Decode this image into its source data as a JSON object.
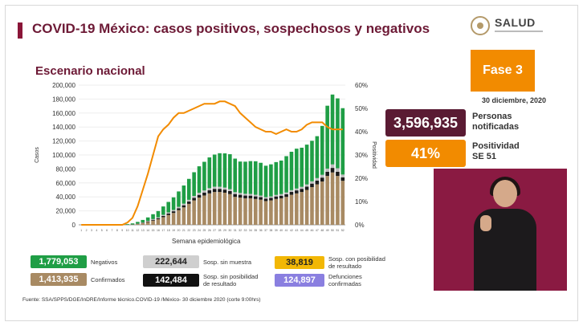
{
  "header": {
    "title": "COVID-19 México: casos positivos, sospechosos y negativos",
    "subtitle": "Escenario nacional",
    "logo_text": "SALUD"
  },
  "side": {
    "phase": "Fase 3",
    "date": "30 diciembre, 2020",
    "notified_value": "3,596,935",
    "notified_label_1": "Personas",
    "notified_label_2": "notificadas",
    "positivity_value": "41%",
    "positivity_label_1": "Positividad",
    "positivity_label_2": "SE 51"
  },
  "legend": {
    "negativos_value": "1,779,053",
    "negativos_label": "Negativos",
    "sosp_sin_muestra_value": "222,644",
    "sosp_sin_muestra_label": "Sosp. sin muestra",
    "sosp_con_posib_value": "38,819",
    "sosp_con_posib_label": "Sosp. con posibilidad de resultado",
    "confirmados_value": "1,413,935",
    "confirmados_label": "Confirmados",
    "sosp_sin_posib_value": "142,484",
    "sosp_sin_posib_label": "Sosp. sin posibilidad de resultado",
    "defunciones_value": "124,897",
    "defunciones_label": "Defunciones confirmadas"
  },
  "source": "Fuente: SSA/SPPS/DGE/InDRE/Informe técnico.COVID-19 /México- 30 diciembre 2020 (corte 9:00hrs)",
  "colors": {
    "confirmados": "#a88a63",
    "sosp_sin_posib": "#1a1a1a",
    "sosp_sin_muestra": "#bdbdbd",
    "negativos": "#1f9e45",
    "positividad": "#f28b00",
    "defunciones": "#8a7fe0",
    "sosp_con_posib": "#f2b705"
  },
  "chart_data": {
    "type": "bar",
    "xlabel": "Semana epidemiológica",
    "ylabel": "Casos",
    "y2label": "Positividad",
    "ylim": [
      0,
      200000
    ],
    "y2lim": [
      0,
      60
    ],
    "yticks": [
      "0",
      "20,000",
      "40,000",
      "60,000",
      "80,000",
      "100,000",
      "120,000",
      "140,000",
      "160,000",
      "180,000",
      "200,000"
    ],
    "y2ticks": [
      "0%",
      "10%",
      "20%",
      "30%",
      "40%",
      "50%",
      "60%"
    ],
    "stacked": true,
    "weeks": [
      "1",
      "2",
      "3",
      "4",
      "5",
      "6",
      "7",
      "8",
      "9",
      "10",
      "11",
      "12",
      "13",
      "14",
      "15",
      "16",
      "17",
      "18",
      "19",
      "20",
      "21",
      "22",
      "23",
      "24",
      "25",
      "26",
      "27",
      "28",
      "29",
      "30",
      "31",
      "32",
      "33",
      "34",
      "35",
      "36",
      "37",
      "38",
      "39",
      "40",
      "41",
      "42",
      "43",
      "44",
      "45",
      "46",
      "47",
      "48",
      "49",
      "50",
      "51",
      "52"
    ],
    "series": [
      {
        "name": "Confirmados",
        "values": [
          0,
          0,
          0,
          0,
          0,
          0,
          0,
          0,
          0,
          100,
          400,
          1200,
          2500,
          4000,
          6000,
          8000,
          11000,
          14000,
          17000,
          21000,
          25000,
          30000,
          35000,
          39000,
          42000,
          45000,
          47000,
          47000,
          46000,
          44000,
          40000,
          39000,
          38000,
          38000,
          37000,
          36000,
          34000,
          35000,
          37000,
          38000,
          40000,
          43000,
          45000,
          47000,
          50000,
          54000,
          58000,
          62000,
          70000,
          75000,
          70000,
          63000
        ]
      },
      {
        "name": "Sosp. sin posibilidad de resultado",
        "values": [
          0,
          0,
          0,
          0,
          0,
          0,
          0,
          0,
          0,
          0,
          100,
          300,
          600,
          900,
          1200,
          1500,
          1800,
          2100,
          2400,
          2700,
          3000,
          3300,
          3600,
          3900,
          4200,
          4400,
          4500,
          4500,
          4400,
          4300,
          4100,
          4000,
          3900,
          3800,
          3700,
          3600,
          3500,
          3500,
          3600,
          3700,
          3900,
          4100,
          4300,
          4500,
          4700,
          5000,
          5300,
          5600,
          6000,
          6500,
          6000,
          5000
        ]
      },
      {
        "name": "Sosp. sin muestra",
        "values": [
          0,
          0,
          0,
          0,
          0,
          0,
          0,
          0,
          0,
          0,
          50,
          200,
          400,
          700,
          1000,
          1200,
          1500,
          1700,
          1900,
          2100,
          2300,
          2500,
          2700,
          2900,
          3000,
          3100,
          3100,
          3000,
          2900,
          2800,
          2700,
          2600,
          2500,
          2400,
          2300,
          2200,
          2100,
          2100,
          2200,
          2300,
          2400,
          2500,
          2700,
          2900,
          3100,
          3300,
          3600,
          4000,
          4500,
          5000,
          5000,
          4000
        ]
      },
      {
        "name": "Negativos",
        "values": [
          0,
          0,
          0,
          0,
          0,
          0,
          0,
          0,
          0,
          900,
          1500,
          2500,
          3500,
          5000,
          7000,
          9000,
          12000,
          15000,
          18000,
          22000,
          26000,
          30000,
          34000,
          38000,
          41000,
          44000,
          46000,
          48000,
          49000,
          50000,
          48000,
          45000,
          46000,
          47000,
          48000,
          47000,
          45000,
          46000,
          47000,
          48000,
          52000,
          55000,
          57000,
          56000,
          57000,
          58000,
          60000,
          70000,
          90000,
          100000,
          100000,
          95000
        ]
      }
    ],
    "line": {
      "name": "Positividad",
      "values": [
        0,
        0,
        0,
        0,
        0,
        0,
        0,
        0,
        0,
        1,
        3,
        8,
        15,
        22,
        30,
        38,
        41,
        43,
        46,
        48,
        48,
        49,
        50,
        51,
        52,
        52,
        52,
        53,
        53,
        52,
        51,
        48,
        46,
        44,
        42,
        41,
        40,
        40,
        39,
        40,
        41,
        40,
        40,
        41,
        43,
        44,
        44,
        44,
        42,
        41,
        41,
        41
      ]
    }
  }
}
